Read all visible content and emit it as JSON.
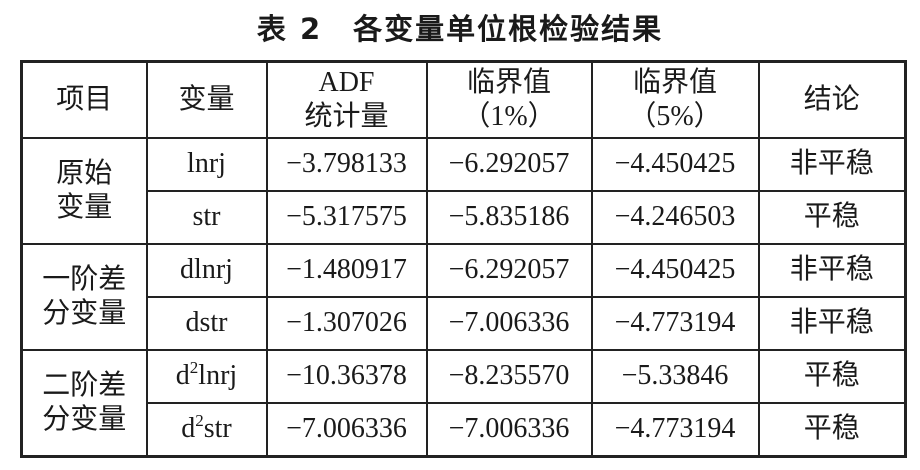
{
  "title": "表 2　各变量单位根检验结果",
  "table": {
    "header": [
      [
        "项目"
      ],
      [
        "变量"
      ],
      [
        "ADF",
        "统计量"
      ],
      [
        "临界值",
        "（1%）"
      ],
      [
        "临界值",
        "（5%）"
      ],
      [
        "结论"
      ]
    ],
    "groups": [
      {
        "label": [
          "原始",
          "变量"
        ],
        "rows": [
          [
            "lnrj",
            "−3.798133",
            "−6.292057",
            "−4.450425",
            "非平稳"
          ],
          [
            "str",
            "−5.317575",
            "−5.835186",
            "−4.246503",
            "平稳"
          ]
        ]
      },
      {
        "label": [
          "一阶差",
          "分变量"
        ],
        "rows": [
          [
            "dlnrj",
            "−1.480917",
            "−6.292057",
            "−4.450425",
            "非平稳"
          ],
          [
            "dstr",
            "−1.307026",
            "−7.006336",
            "−4.773194",
            "非平稳"
          ]
        ]
      },
      {
        "label": [
          "二阶差",
          "分变量"
        ],
        "rows": [
          [
            {
              "base": "d",
              "sup": "2",
              "rest": "lnrj"
            },
            "−10.36378",
            "−8.235570",
            "−5.33846",
            "平稳"
          ],
          [
            {
              "base": "d",
              "sup": "2",
              "rest": "str"
            },
            "−7.006336",
            "−7.006336",
            "−4.773194",
            "平稳"
          ]
        ]
      }
    ]
  }
}
